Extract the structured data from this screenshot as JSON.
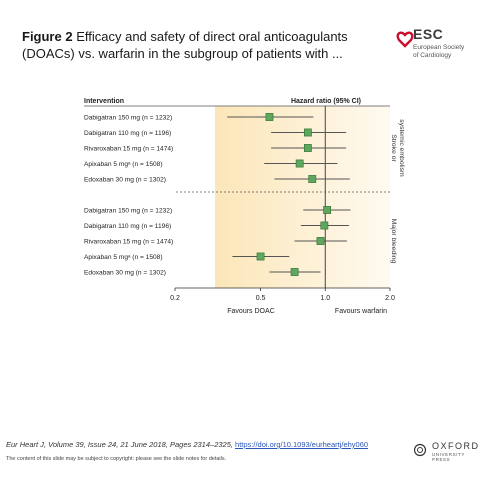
{
  "header": {
    "figure_label": "Figure 2",
    "title": "Efficacy and safety of direct oral anticoagulants (DOACs) vs. warfarin in the subgroup of patients with ..."
  },
  "esc_logo": {
    "name": "ESC",
    "subtitle_line1": "European Society",
    "subtitle_line2": "of Cardiology",
    "color": "#c8102e"
  },
  "chart_data": {
    "type": "forest",
    "column_header_left": "Intervention",
    "column_header_right": "Hazard ratio (95% CI)",
    "x_scale": "log",
    "xlim": [
      0.2,
      2.0
    ],
    "x_ticks": [
      "0.2",
      "0.5",
      "1.0",
      "2.0"
    ],
    "reference_line": 1.0,
    "xlabel_left": "Favours DOAC",
    "xlabel_right": "Favours warfarin",
    "colors": {
      "marker": "#5fa65f",
      "marker_border": "#2f6f2f",
      "shade": "#fbe6b8"
    },
    "groups": [
      {
        "label": "Stroke or systemic embolism",
        "rows": [
          {
            "label": "Dabigatran 150 mg (n = 1232)",
            "hr": 0.55,
            "lo": 0.35,
            "hi": 0.88
          },
          {
            "label": "Dabigatran 110 mg (n = 1196)",
            "hr": 0.83,
            "lo": 0.56,
            "hi": 1.25
          },
          {
            "label": "Rivaroxaban 15 mg (n = 1474)",
            "hr": 0.83,
            "lo": 0.56,
            "hi": 1.25
          },
          {
            "label": "Apixaban 5 mgᵃ (n = 1508)",
            "hr": 0.76,
            "lo": 0.52,
            "hi": 1.14
          },
          {
            "label": "Edoxaban 30 mg (n = 1302)",
            "hr": 0.87,
            "lo": 0.58,
            "hi": 1.3
          }
        ]
      },
      {
        "label": "Major bleeding",
        "rows": [
          {
            "label": "Dabigatran 150 mg (n = 1232)",
            "hr": 1.02,
            "lo": 0.79,
            "hi": 1.31
          },
          {
            "label": "Dabigatran 110 mg (n = 1196)",
            "hr": 0.99,
            "lo": 0.77,
            "hi": 1.29
          },
          {
            "label": "Rivaroxaban 15 mg (n = 1474)",
            "hr": 0.95,
            "lo": 0.72,
            "hi": 1.26
          },
          {
            "label": "Apixaban 5 mgᵃ (n = 1508)",
            "hr": 0.5,
            "lo": 0.37,
            "hi": 0.68
          },
          {
            "label": "Edoxaban 30 mg (n = 1302)",
            "hr": 0.72,
            "lo": 0.55,
            "hi": 0.95
          }
        ]
      }
    ]
  },
  "footer": {
    "citation_text": "Eur Heart J, Volume 39, Issue 24, 21 June 2018, Pages 2314–2325, ",
    "doi_link": "https://doi.org/10.1093/eurheartj/ehy060",
    "copyright": "The content of this slide may be subject to copyright: please see the slide notes for details."
  },
  "oxford_logo": {
    "name": "OXFORD",
    "subtitle": "UNIVERSITY PRESS"
  }
}
